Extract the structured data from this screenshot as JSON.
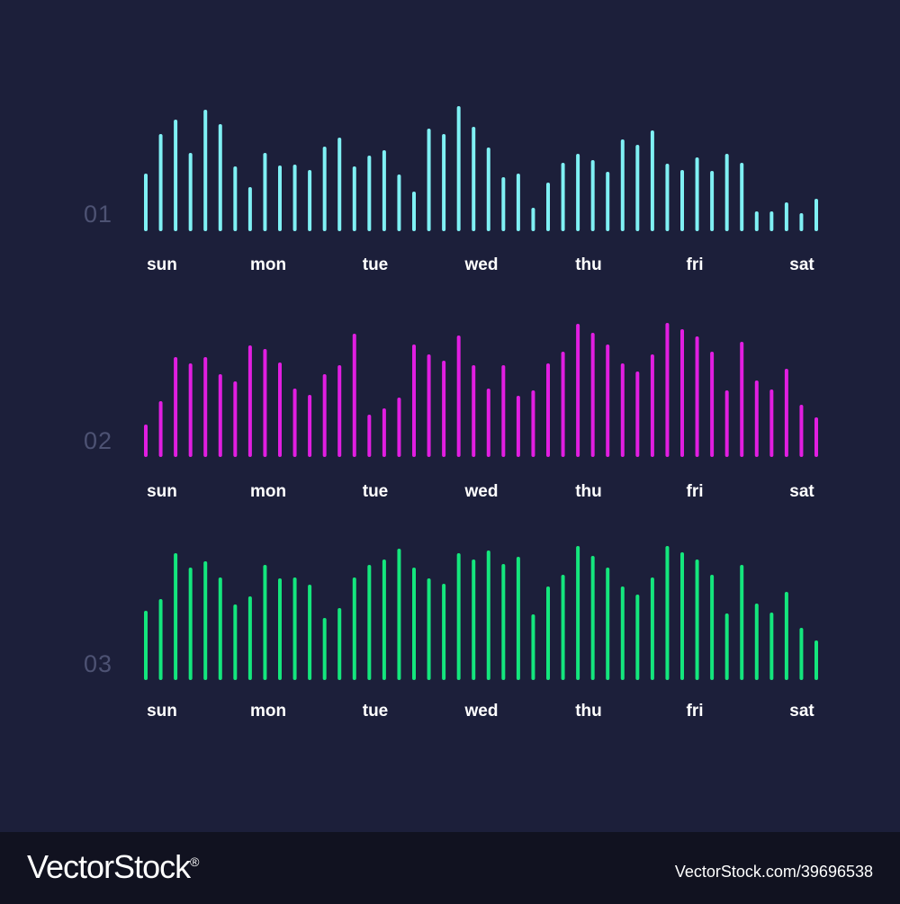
{
  "chart_data": [
    {
      "type": "bar",
      "label": "01",
      "color": "#7ff0f4",
      "day_labels": [
        "sun",
        "mon",
        "tue",
        "wed",
        "thu",
        "fri",
        "sat"
      ],
      "values": [
        60,
        104,
        120,
        83,
        131,
        115,
        68,
        45,
        83,
        69,
        70,
        64,
        90,
        100,
        68,
        80,
        86,
        59,
        40,
        110,
        104,
        135,
        112,
        89,
        56,
        60,
        22,
        50,
        72,
        82,
        75,
        62,
        98,
        92,
        108,
        71,
        64,
        78,
        63,
        82,
        72,
        18,
        18,
        28,
        16,
        32
      ]
    },
    {
      "type": "bar",
      "label": "02",
      "color": "#e11ee1",
      "day_labels": [
        "sun",
        "mon",
        "tue",
        "wed",
        "thu",
        "fri",
        "sat"
      ],
      "values": [
        32,
        58,
        107,
        100,
        107,
        88,
        80,
        120,
        116,
        101,
        72,
        65,
        88,
        98,
        133,
        43,
        50,
        62,
        121,
        110,
        103,
        131,
        98,
        72,
        98,
        64,
        70,
        100,
        113,
        144,
        134,
        121,
        100,
        91,
        110,
        145,
        138,
        130,
        113,
        70,
        124,
        81,
        71,
        94,
        54,
        40
      ]
    },
    {
      "type": "bar",
      "label": "03",
      "color": "#14e67d",
      "day_labels": [
        "sun",
        "mon",
        "tue",
        "wed",
        "thu",
        "fri",
        "sat"
      ],
      "values": [
        73,
        86,
        137,
        121,
        128,
        110,
        80,
        89,
        124,
        109,
        110,
        102,
        65,
        76,
        110,
        124,
        130,
        142,
        121,
        109,
        103,
        137,
        130,
        140,
        125,
        133,
        69,
        100,
        113,
        145,
        134,
        121,
        100,
        91,
        110,
        145,
        138,
        130,
        113,
        70,
        124,
        81,
        71,
        94,
        54,
        40
      ]
    }
  ],
  "footer": {
    "brand": "VectorStock",
    "brand_mark": "®",
    "image_id": "VectorStock.com/39696538"
  }
}
